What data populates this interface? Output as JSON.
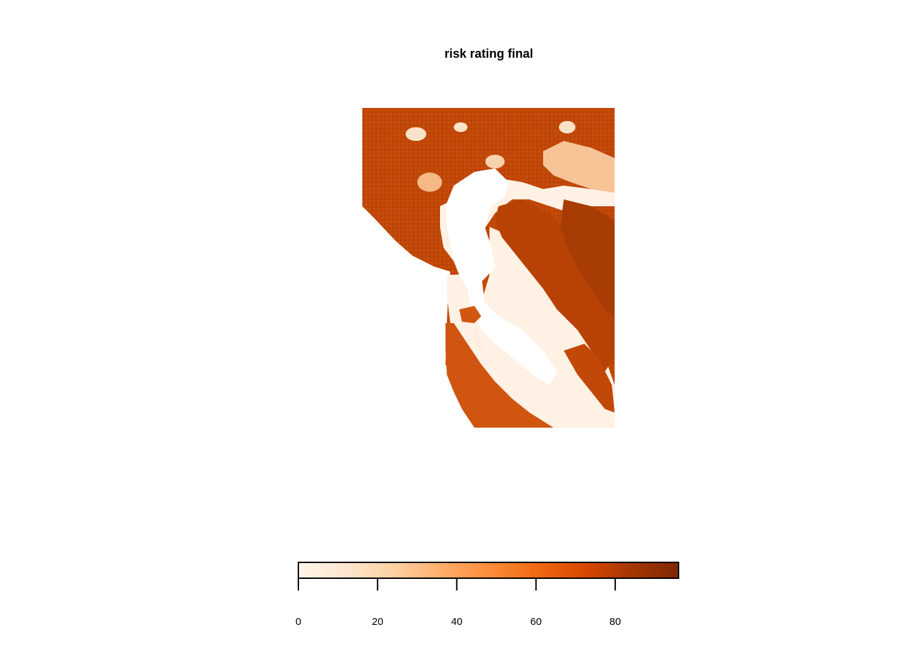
{
  "title": "risk rating final",
  "legend": {
    "min": 0,
    "max": 96,
    "ticks": [
      "0",
      "20",
      "40",
      "60",
      "80"
    ],
    "tick_values": [
      0,
      20,
      40,
      60,
      80
    ],
    "colors": [
      "#fff5eb",
      "#fee6ce",
      "#fdd0a2",
      "#fdae6b",
      "#fd8d3c",
      "#f16913",
      "#d94801",
      "#a63603",
      "#7f2704"
    ]
  },
  "map": {
    "variable": "risk rating final",
    "fill_color_land": "#c84a0a",
    "fill_color_land_dark": "#a83c05",
    "fill_color_low": "#fff1e4",
    "water_color": "#ffffff"
  }
}
